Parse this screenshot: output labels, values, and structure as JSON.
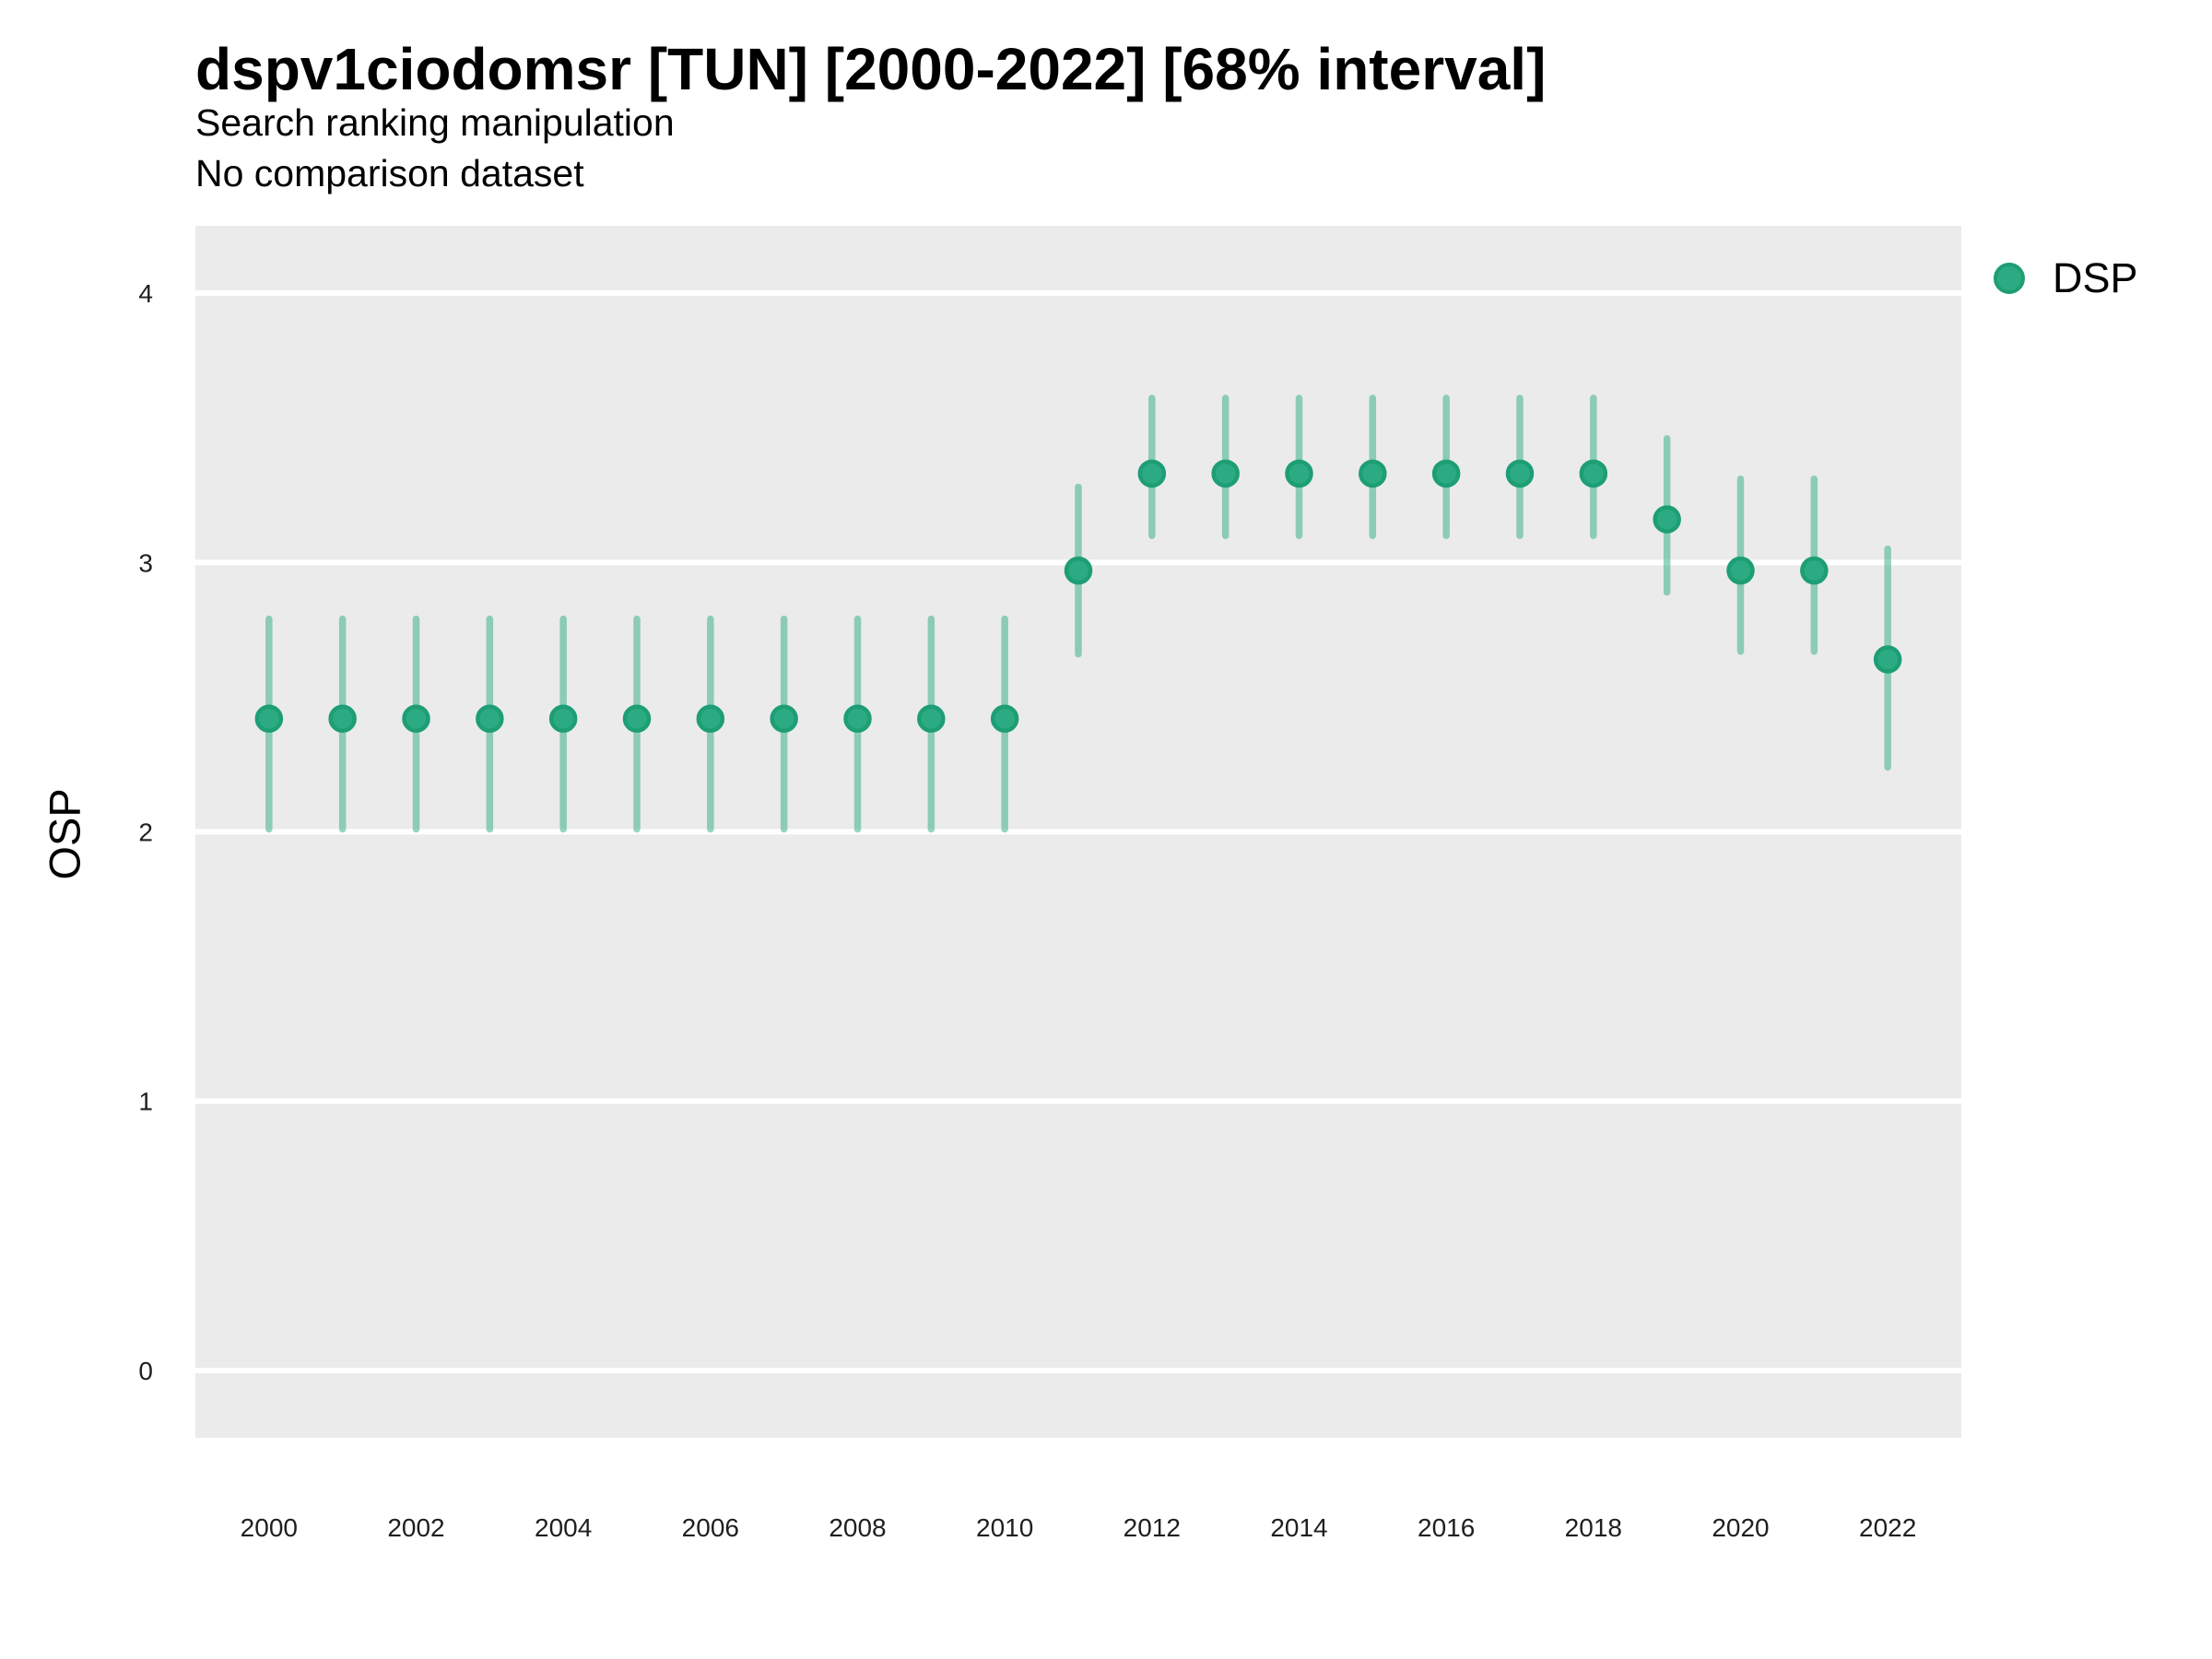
{
  "header": {
    "title": "dspv1ciodomsr [TUN] [2000-2022] [68% interval]",
    "subtitle": "Search ranking manipulation",
    "subtitle2": "No comparison dataset"
  },
  "chart_data": {
    "type": "pointrange-scatter",
    "title": "dspv1ciodomsr [TUN] [2000-2022] [68% interval]",
    "xlabel": "",
    "ylabel": "OSP",
    "interval": "68%",
    "xlim": [
      1999,
      2023
    ],
    "ylim": [
      -0.25,
      4.25
    ],
    "x_ticks": [
      2000,
      2002,
      2004,
      2006,
      2008,
      2010,
      2012,
      2014,
      2016,
      2018,
      2020,
      2022
    ],
    "y_ticks": [
      0,
      1,
      2,
      3,
      4
    ],
    "grid": "horizontal-major-only",
    "legend": {
      "position": "right-top",
      "label": "DSP"
    },
    "colors": {
      "point_fill": "#2cab83",
      "point_stroke": "#1d9e74",
      "range_color": "#2cab83",
      "range_opacity": 0.5,
      "panel_bg": "#ebebeb",
      "grid_color": "#ffffff",
      "tick_text": "#1f1f1f"
    },
    "series": [
      {
        "name": "DSP",
        "points": [
          {
            "year": 2000,
            "est": 2.42,
            "lo": 2.01,
            "hi": 2.79
          },
          {
            "year": 2001,
            "est": 2.42,
            "lo": 2.01,
            "hi": 2.79
          },
          {
            "year": 2002,
            "est": 2.42,
            "lo": 2.01,
            "hi": 2.79
          },
          {
            "year": 2003,
            "est": 2.42,
            "lo": 2.01,
            "hi": 2.79
          },
          {
            "year": 2004,
            "est": 2.42,
            "lo": 2.01,
            "hi": 2.79
          },
          {
            "year": 2005,
            "est": 2.42,
            "lo": 2.01,
            "hi": 2.79
          },
          {
            "year": 2006,
            "est": 2.42,
            "lo": 2.01,
            "hi": 2.79
          },
          {
            "year": 2007,
            "est": 2.42,
            "lo": 2.01,
            "hi": 2.79
          },
          {
            "year": 2008,
            "est": 2.42,
            "lo": 2.01,
            "hi": 2.79
          },
          {
            "year": 2009,
            "est": 2.42,
            "lo": 2.01,
            "hi": 2.79
          },
          {
            "year": 2010,
            "est": 2.42,
            "lo": 2.01,
            "hi": 2.79
          },
          {
            "year": 2011,
            "est": 2.97,
            "lo": 2.66,
            "hi": 3.28
          },
          {
            "year": 2012,
            "est": 3.33,
            "lo": 3.1,
            "hi": 3.61
          },
          {
            "year": 2013,
            "est": 3.33,
            "lo": 3.1,
            "hi": 3.61
          },
          {
            "year": 2014,
            "est": 3.33,
            "lo": 3.1,
            "hi": 3.61
          },
          {
            "year": 2015,
            "est": 3.33,
            "lo": 3.1,
            "hi": 3.61
          },
          {
            "year": 2016,
            "est": 3.33,
            "lo": 3.1,
            "hi": 3.61
          },
          {
            "year": 2017,
            "est": 3.33,
            "lo": 3.1,
            "hi": 3.61
          },
          {
            "year": 2018,
            "est": 3.33,
            "lo": 3.1,
            "hi": 3.61
          },
          {
            "year": 2019,
            "est": 3.16,
            "lo": 2.89,
            "hi": 3.46
          },
          {
            "year": 2020,
            "est": 2.97,
            "lo": 2.67,
            "hi": 3.31
          },
          {
            "year": 2021,
            "est": 2.97,
            "lo": 2.67,
            "hi": 3.31
          },
          {
            "year": 2022,
            "est": 2.64,
            "lo": 2.24,
            "hi": 3.05
          }
        ]
      }
    ]
  }
}
